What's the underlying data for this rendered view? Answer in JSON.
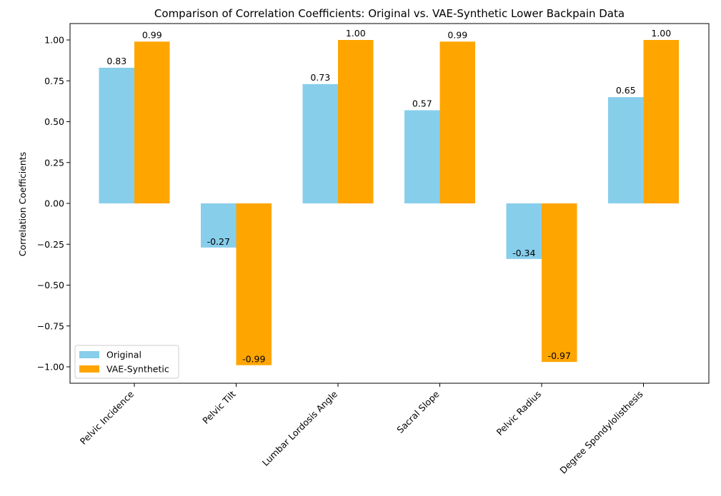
{
  "chart_data": {
    "type": "bar",
    "title": "Comparison of Correlation Coefficients: Original vs. VAE-Synthetic Lower Backpain Data",
    "xlabel": "",
    "ylabel": "Correlation Coefficients",
    "ylim": [
      -1.08,
      1.1
    ],
    "yticks": [
      "1.00",
      "0.75",
      "0.50",
      "0.25",
      "0.00",
      "−0.25",
      "−0.50",
      "−0.75",
      "−1.00"
    ],
    "ytick_values": [
      1.0,
      0.75,
      0.5,
      0.25,
      0.0,
      -0.25,
      -0.5,
      -0.75,
      -1.0
    ],
    "categories": [
      "Pelvic Incidence",
      "Pelvic Tilt",
      "Lumbar Lordosis Angle",
      "Sacral Slope",
      "Pelvic Radius",
      "Degree Spondylolisthesis"
    ],
    "series": [
      {
        "name": "Original",
        "color": "#87ceeb",
        "values": [
          0.83,
          -0.27,
          0.73,
          0.57,
          -0.34,
          0.65
        ],
        "labels": [
          "0.83",
          "-0.27",
          "0.73",
          "0.57",
          "-0.34",
          "0.65"
        ]
      },
      {
        "name": "VAE-Synthetic",
        "color": "#ffa500",
        "values": [
          0.99,
          -0.99,
          1.0,
          0.99,
          -0.97,
          1.0
        ],
        "labels": [
          "0.99",
          "-0.99",
          "1.00",
          "0.99",
          "-0.97",
          "1.00"
        ]
      }
    ],
    "legend_position": "lower-left",
    "grid": false
  }
}
